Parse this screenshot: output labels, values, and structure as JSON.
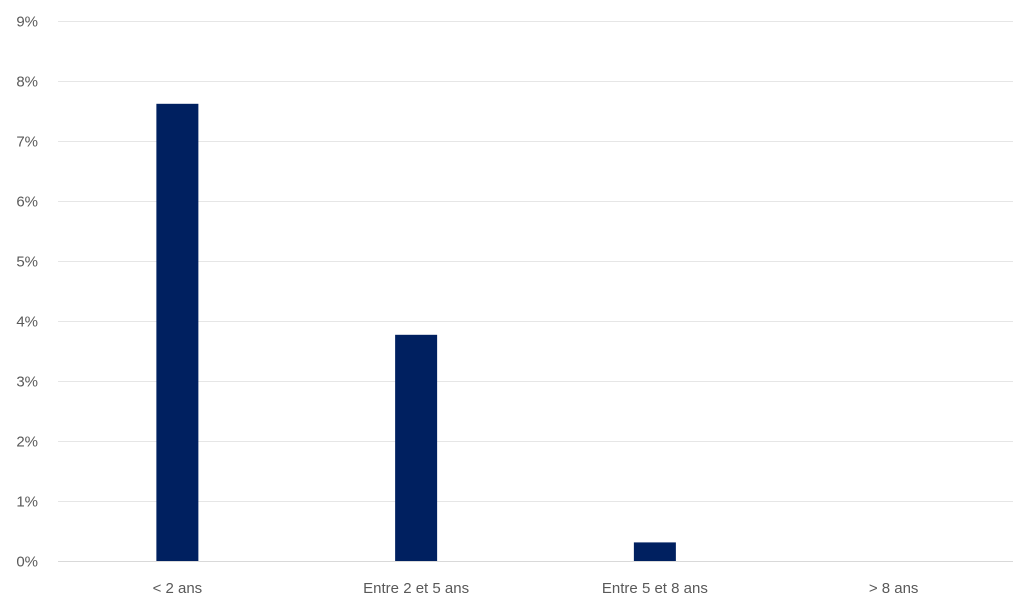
{
  "chart_data": {
    "type": "bar",
    "title": "",
    "xlabel": "",
    "ylabel": "",
    "categories": [
      "< 2 ans",
      "Entre 2 et 5 ans",
      "Entre 5 et 8 ans",
      "> 8 ans"
    ],
    "series": [
      {
        "values": [
          7.62,
          3.77,
          0.31,
          0
        ],
        "color": "#002060"
      }
    ],
    "ylim": [
      0,
      9
    ],
    "y_ticks": [
      0,
      1,
      2,
      3,
      4,
      5,
      6,
      7,
      8,
      9
    ],
    "y_tick_labels": [
      "0%",
      "1%",
      "2%",
      "3%",
      "4%",
      "5%",
      "6%",
      "7%",
      "8%",
      "9%"
    ],
    "grid": true,
    "legend": "none"
  }
}
